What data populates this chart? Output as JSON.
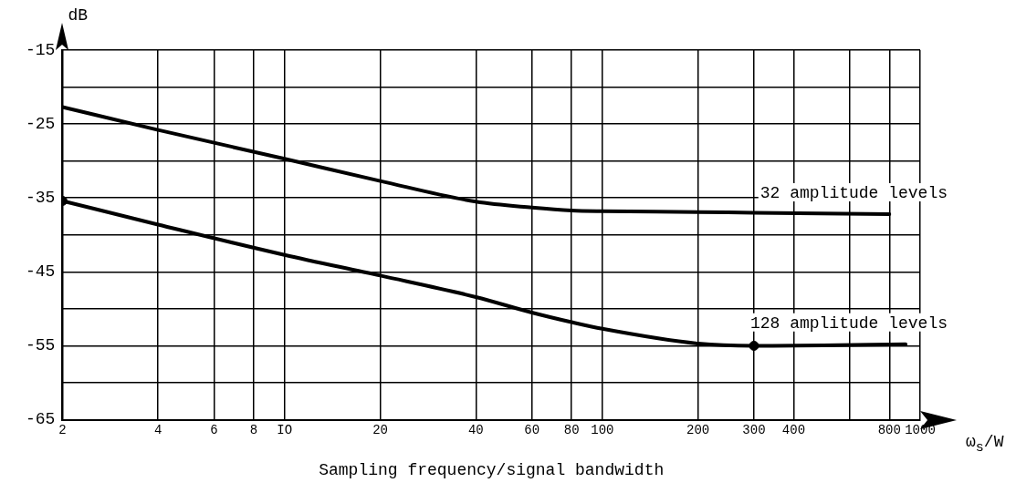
{
  "chart_data": {
    "type": "line",
    "xlabel": "Sampling frequency/signal bandwidth",
    "ylabel": "dB",
    "log": "x",
    "grid": true,
    "legend": false,
    "marker": "none",
    "line_style": "solid",
    "xlim": [
      2,
      1000
    ],
    "ylim": [
      -65,
      -15
    ],
    "xticks": [
      2,
      4,
      6,
      8,
      {
        "value": 10,
        "label": "IO"
      },
      20,
      40,
      60,
      80,
      100,
      200,
      300,
      {
        "value": 400,
        "label": "400"
      },
      {
        "value": 600,
        "label": null
      },
      800,
      1000
    ],
    "yticks": [
      -65,
      {
        "value": -60,
        "label": null
      },
      -55,
      {
        "value": -50,
        "label": null
      },
      -45,
      {
        "value": -40,
        "label": null
      },
      -35,
      {
        "value": -30,
        "label": null
      },
      -25,
      {
        "value": -20,
        "label": null
      },
      -15
    ],
    "annotations": [
      "ω$_{s}$/W"
    ],
    "series": [
      {
        "name": "32 amplitude levels",
        "color": "#000000",
        "x": [
          2,
          4,
          10,
          20,
          40,
          60,
          80,
          100,
          200,
          300,
          800
        ],
        "values": [
          -22.7,
          -25.8,
          -29.7,
          -32.7,
          -35.5,
          -36.3,
          -36.7,
          -36.8,
          -36.9,
          -37.0,
          -37.2
        ]
      },
      {
        "name": "128 amplitude levels",
        "color": "#000000",
        "x": [
          2,
          4,
          10,
          20,
          40,
          60,
          80,
          100,
          200,
          300,
          900
        ],
        "values": [
          -35.4,
          -38.6,
          -42.7,
          -45.5,
          -48.4,
          -50.5,
          -51.8,
          -52.7,
          -54.7,
          -55.0,
          -54.8
        ]
      },
      {
        "type": "scatter",
        "marker": "circle",
        "color": "#000000",
        "x": [
          2,
          300
        ],
        "values": [
          -35.4,
          -55.0
        ]
      }
    ]
  }
}
